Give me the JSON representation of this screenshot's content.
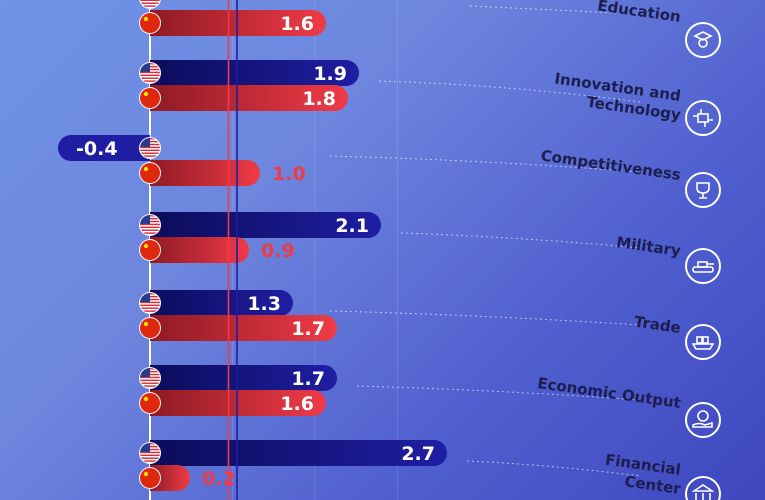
{
  "colors": {
    "usa_bar": "#1f1ea3",
    "china_bar": "#ef3b47",
    "china_label_outside": "#ef3b47",
    "usa_line": "#1f1ea3",
    "china_line": "#ef3b47",
    "label_text": "#1c1e4f",
    "icon_circle": "#ffffff"
  },
  "chart_data": {
    "type": "bar",
    "orientation": "horizontal",
    "series": [
      {
        "name": "United States",
        "flag": "usa",
        "values": [
          null,
          1.9,
          -0.4,
          2.1,
          1.3,
          1.7,
          2.7
        ]
      },
      {
        "name": "China",
        "flag": "china",
        "values": [
          1.6,
          1.8,
          1.0,
          0.9,
          1.7,
          1.6,
          0.2
        ]
      }
    ],
    "value_labels": {
      "usa": [
        "",
        "1.9",
        "-0.4",
        "2.1",
        "1.3",
        "1.7",
        "2.7"
      ],
      "china": [
        "1.6",
        "1.8",
        "1.0",
        "0.9",
        "1.7",
        "1.6",
        "0.2"
      ]
    },
    "categories": [
      "Education",
      "Innovation and Technology",
      "Competitiveness",
      "Military",
      "Trade",
      "Economic Output",
      "Financial Center"
    ],
    "category_labels": [
      [
        "Education"
      ],
      [
        "Innovation and",
        "Technology"
      ],
      [
        "Competitiveness"
      ],
      [
        "Military"
      ],
      [
        "Trade"
      ],
      [
        "Economic Output"
      ],
      [
        "Financial",
        "Center"
      ]
    ],
    "category_icons": [
      "graduate-icon",
      "circuit-icon",
      "trophy-icon",
      "tank-icon",
      "cargo-ship-icon",
      "money-hand-icon",
      "bank-icon"
    ],
    "xlim": [
      -0.5,
      3.0
    ],
    "reference_lines": {
      "usa": 0.8,
      "china": 0.75
    },
    "grid": true
  }
}
